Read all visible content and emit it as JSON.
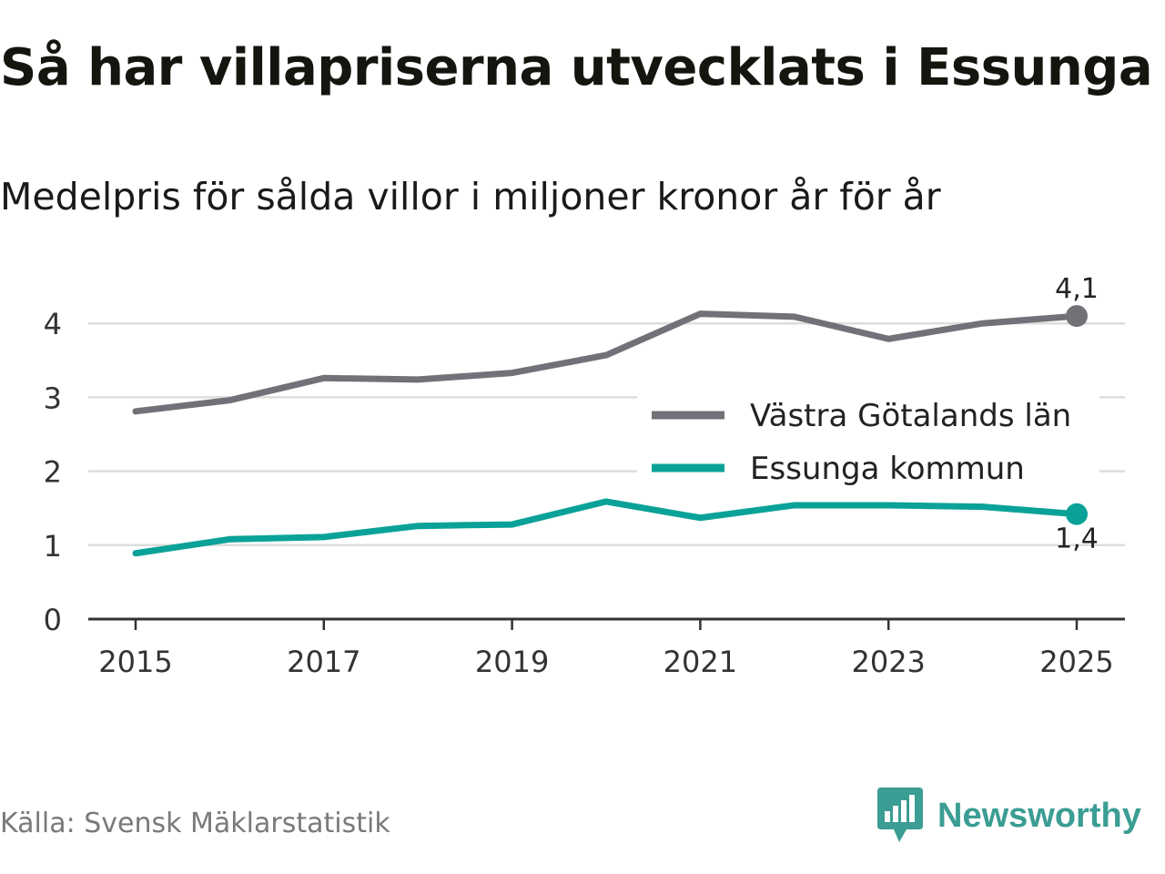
{
  "header": {
    "title": "Så har villapriserna utvecklats i Essunga",
    "subtitle": "Medelpris för sålda villor i miljoner kronor år för år"
  },
  "footer": {
    "source": "Källa: Svensk Mäklarstatistik",
    "brand": "Newsworthy"
  },
  "colors": {
    "vastra": "#727178",
    "essunga": "#0aa298",
    "grid": "#dddddd",
    "axis": "#333333",
    "brand": "#3b9d93"
  },
  "chart_data": {
    "type": "line",
    "title": "Så har villapriserna utvecklats i Essunga",
    "subtitle": "Medelpris för sålda villor i miljoner kronor år för år",
    "xlabel": "",
    "ylabel": "",
    "x": [
      2015,
      2016,
      2017,
      2018,
      2019,
      2020,
      2021,
      2022,
      2023,
      2024,
      2025
    ],
    "xticks": [
      "2015",
      "2017",
      "2019",
      "2021",
      "2023",
      "2025"
    ],
    "yticks": [
      "0",
      "1",
      "2",
      "3",
      "4"
    ],
    "ylim": [
      0,
      4.5
    ],
    "xlim": [
      2014.5,
      2025.5
    ],
    "grid": true,
    "legend_position": "right",
    "series": [
      {
        "name": "Västra Götalands län",
        "color": "#727178",
        "values": [
          2.81,
          2.96,
          3.26,
          3.24,
          3.33,
          3.57,
          4.13,
          4.09,
          3.79,
          4.0,
          4.1
        ],
        "end_label": "4,1"
      },
      {
        "name": "Essunga kommun",
        "color": "#0aa298",
        "values": [
          0.89,
          1.08,
          1.11,
          1.26,
          1.28,
          1.59,
          1.37,
          1.54,
          1.54,
          1.52,
          1.42
        ],
        "end_label": "1,4"
      }
    ]
  }
}
